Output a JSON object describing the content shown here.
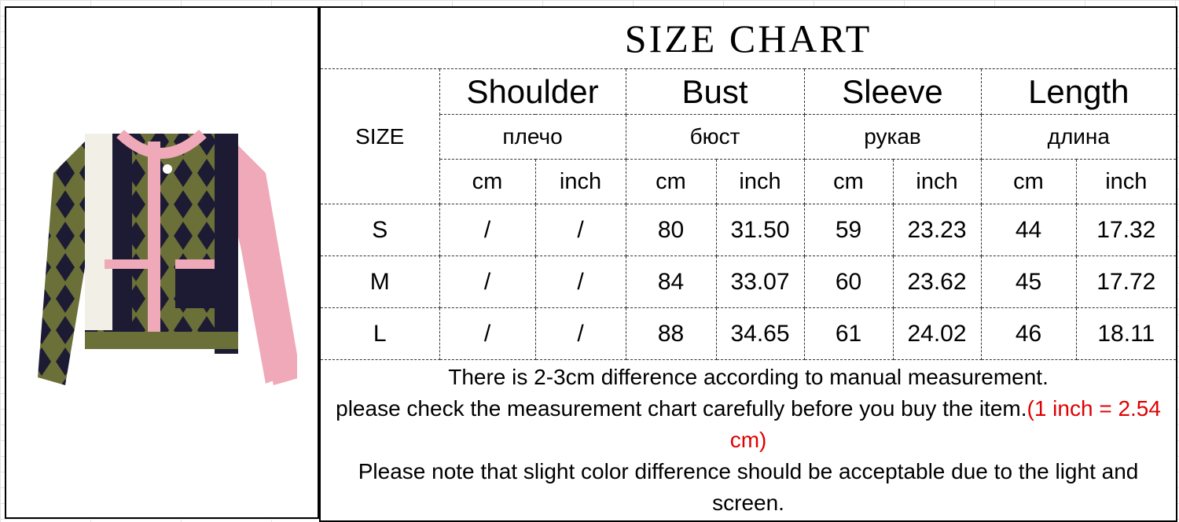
{
  "title": "SIZE CHART",
  "size_header": "SIZE",
  "measures": [
    {
      "en": "Shoulder",
      "ru": "плечо"
    },
    {
      "en": "Bust",
      "ru": "бюст"
    },
    {
      "en": "Sleeve",
      "ru": "рукав"
    },
    {
      "en": "Length",
      "ru": "длина"
    }
  ],
  "units": [
    "cm",
    "inch"
  ],
  "rows": [
    {
      "size": "S",
      "values": [
        "/",
        "/",
        "80",
        "31.50",
        "59",
        "23.23",
        "44",
        "17.32"
      ]
    },
    {
      "size": "M",
      "values": [
        "/",
        "/",
        "84",
        "33.07",
        "60",
        "23.62",
        "45",
        "17.72"
      ]
    },
    {
      "size": "L",
      "values": [
        "/",
        "/",
        "88",
        "34.65",
        "61",
        "24.02",
        "46",
        "18.11"
      ]
    }
  ],
  "notes": {
    "line1": "There is 2-3cm difference according to manual measurement.",
    "line2": "please check the measurement chart carefully before you buy the item.",
    "conversion": "(1 inch = 2.54 cm)",
    "line3": "Please note that slight color difference should be acceptable due to the light and screen."
  },
  "colors": {
    "conversion_text": "#e00000",
    "sweater_green": "#6b7039",
    "sweater_navy": "#1c1b33",
    "sweater_pink": "#efa9b8"
  }
}
